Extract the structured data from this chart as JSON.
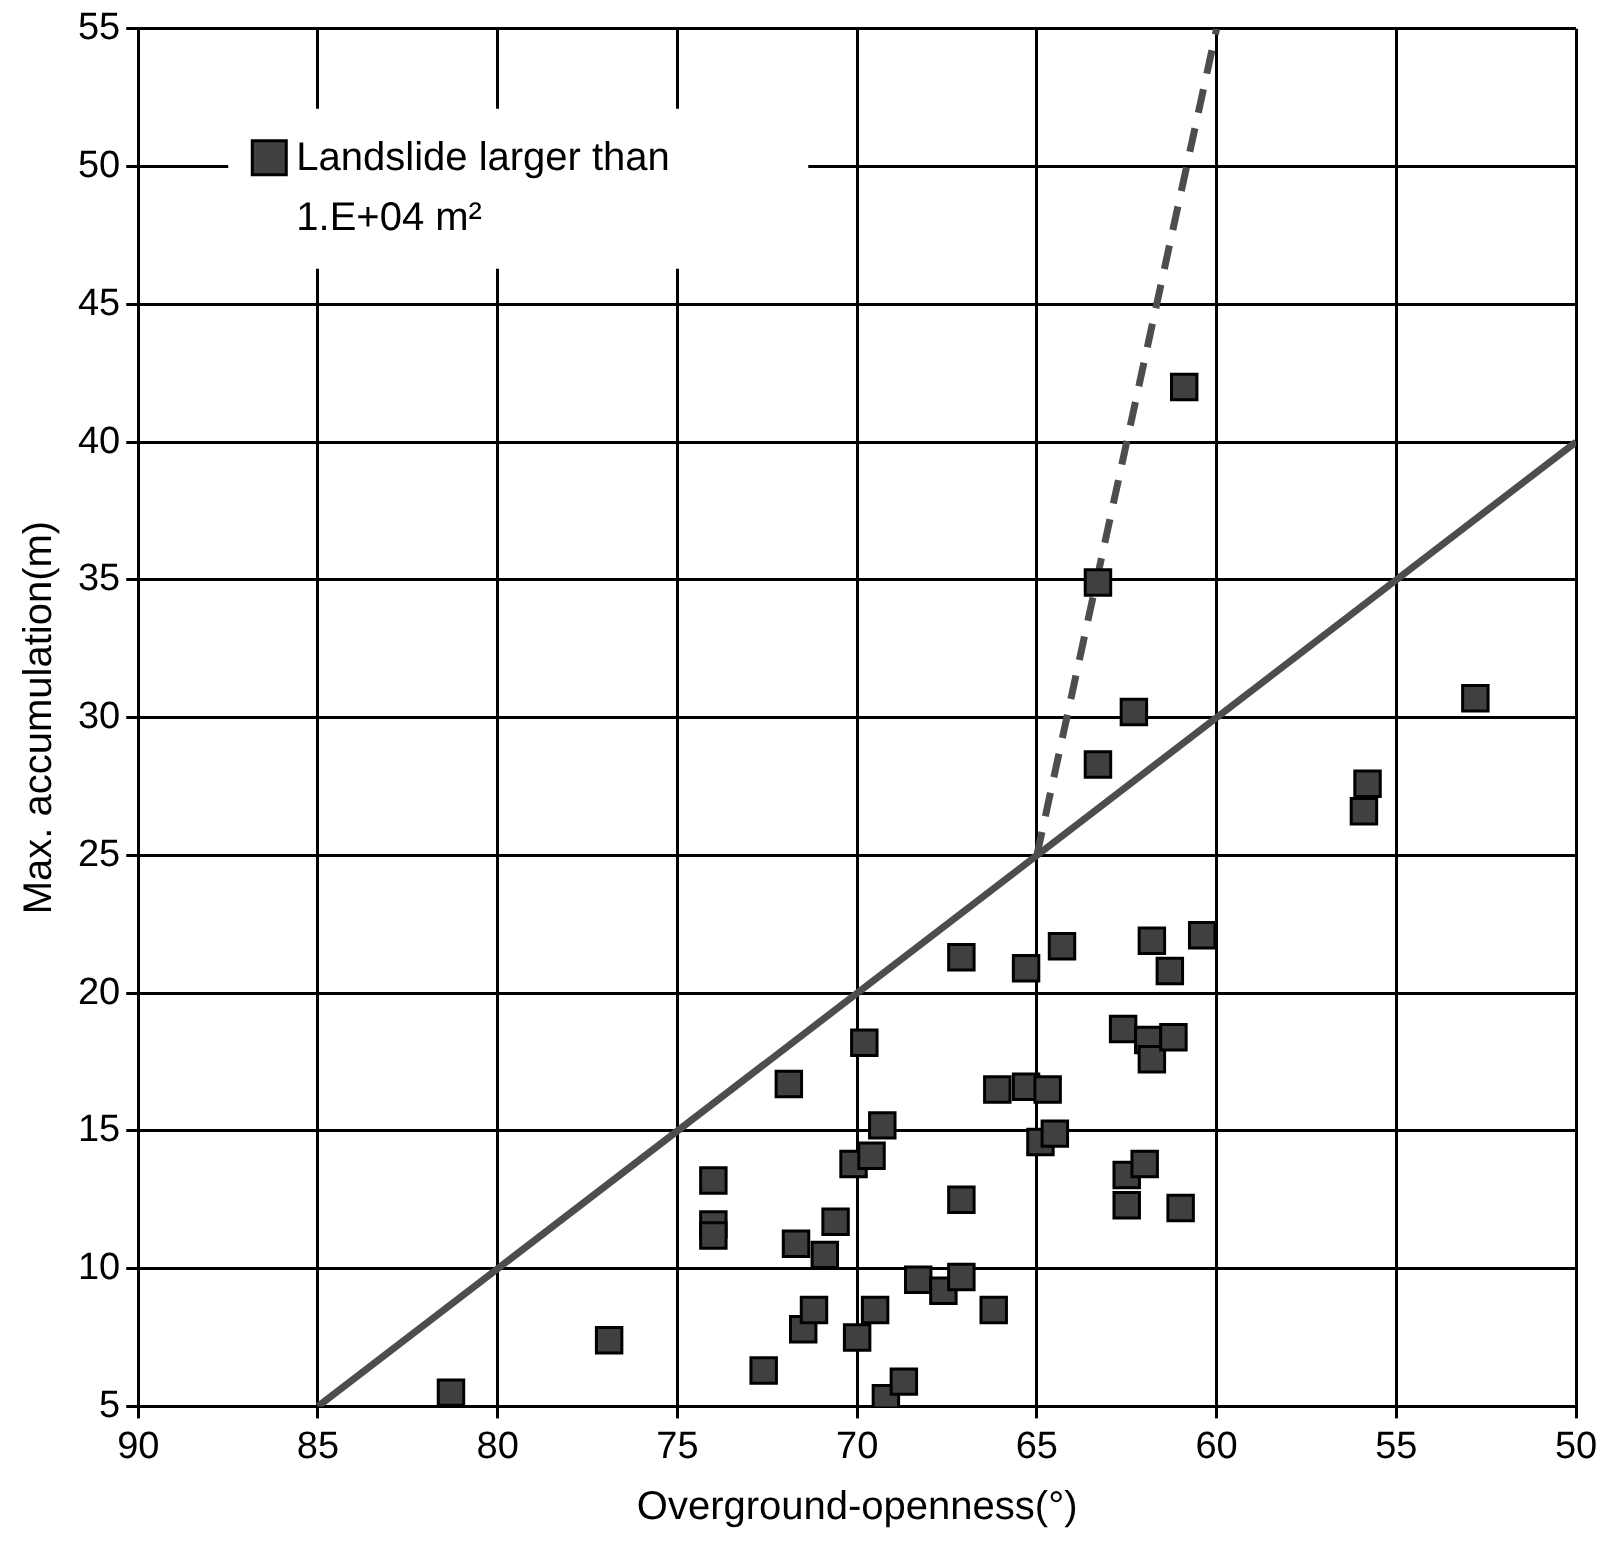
{
  "chart_data": {
    "type": "scatter",
    "xlabel": "Overground-openness(°)",
    "ylabel": "Max. accumulation(m)",
    "xlim": [
      90,
      50
    ],
    "xticks": [
      90,
      85,
      80,
      75,
      70,
      65,
      60,
      55,
      50
    ],
    "ylim": [
      5,
      55
    ],
    "yticks": [
      5,
      10,
      15,
      20,
      25,
      30,
      35,
      40,
      45,
      50,
      55
    ],
    "grid": true,
    "legend": "top left",
    "marker": "square",
    "series": [
      {
        "name": "Landslide larger than 1.E+04 m²",
        "color": "#404040",
        "x": [
          81.3,
          76.9,
          74.0,
          74.0,
          74.0,
          71.9,
          71.7,
          71.5,
          71.2,
          70.9,
          70.6,
          72.6,
          70.1,
          69.8,
          69.6,
          69.3,
          70.0,
          69.5,
          69.2,
          68.7,
          68.3,
          67.6,
          67.1,
          67.1,
          67.1,
          66.2,
          66.1,
          65.3,
          65.3,
          64.9,
          64.7,
          64.5,
          64.3,
          63.3,
          63.3,
          62.6,
          62.5,
          62.5,
          62.3,
          62.0,
          61.9,
          61.8,
          61.8,
          61.3,
          61.2,
          61.0,
          60.9,
          60.4,
          55.9,
          55.8,
          52.8
        ],
        "values": [
          5.5,
          7.4,
          13.2,
          11.6,
          11.2,
          16.7,
          10.9,
          7.8,
          8.5,
          10.5,
          11.7,
          6.3,
          13.8,
          18.2,
          14.1,
          15.2,
          7.5,
          8.5,
          5.3,
          5.9,
          9.6,
          9.2,
          9.7,
          12.5,
          21.3,
          8.5,
          16.5,
          16.6,
          20.9,
          14.6,
          16.5,
          14.9,
          21.7,
          34.9,
          28.3,
          18.7,
          13.4,
          12.3,
          30.2,
          13.8,
          18.3,
          21.9,
          17.6,
          20.8,
          18.4,
          12.2,
          42.0,
          22.1,
          26.6,
          27.6,
          30.7
        ]
      },
      {
        "type": "line",
        "color": "#4d4d4d",
        "line_style": "solid",
        "marker": "none",
        "x": [
          85,
          50
        ],
        "values": [
          5,
          40
        ]
      },
      {
        "type": "line",
        "color": "#4d4d4d",
        "line_style": "dashed",
        "marker": "none",
        "x": [
          65,
          60
        ],
        "values": [
          25,
          55
        ]
      }
    ]
  }
}
